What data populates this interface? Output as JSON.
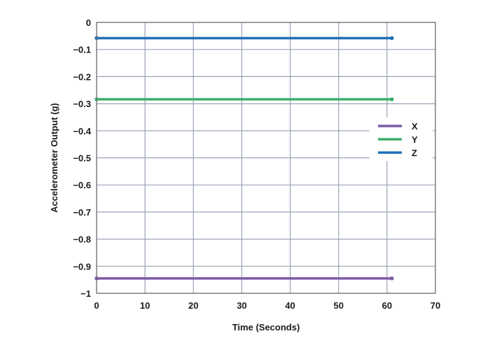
{
  "chart_data": {
    "type": "line",
    "title": "",
    "xlabel": "Time (Seconds)",
    "ylabel": "Accelerometer Output (g)",
    "xlim": [
      0,
      70
    ],
    "ylim": [
      -1,
      0
    ],
    "x_ticks": [
      0,
      10,
      20,
      30,
      40,
      50,
      60,
      70
    ],
    "y_ticks": [
      0,
      -0.1,
      -0.2,
      -0.3,
      -0.4,
      -0.5,
      -0.6,
      -0.7,
      -0.8,
      -0.9,
      -1
    ],
    "x_tick_labels": [
      "0",
      "10",
      "20",
      "30",
      "40",
      "50",
      "60",
      "70"
    ],
    "y_tick_labels": [
      "0",
      "−0.1",
      "−0.2",
      "−0.3",
      "−0.4",
      "−0.5",
      "−0.6",
      "−0.7",
      "−0.8",
      "−0.9",
      "−1"
    ],
    "grid": true,
    "legend_position": "right",
    "x": [
      0,
      61
    ],
    "series": [
      {
        "name": "X",
        "color": "#7d5ba6",
        "values": [
          -0.945,
          -0.945
        ]
      },
      {
        "name": "Y",
        "color": "#3dae6b",
        "values": [
          -0.284,
          -0.284
        ]
      },
      {
        "name": "Z",
        "color": "#1f6fb5",
        "values": [
          -0.058,
          -0.058
        ]
      }
    ]
  }
}
